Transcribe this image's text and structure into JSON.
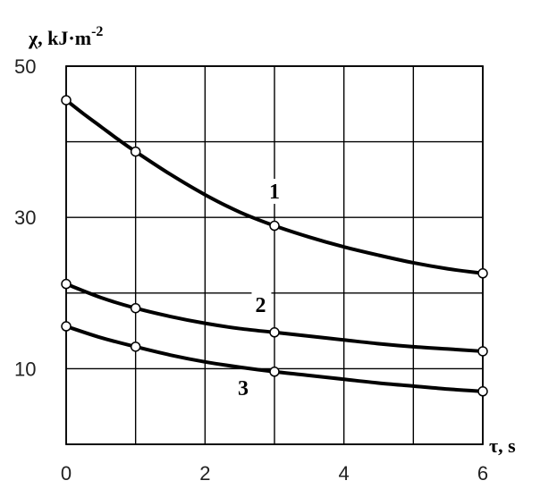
{
  "chart_data": {
    "type": "line",
    "title": "",
    "ylabel_main": "χ, kJ·m",
    "ylabel_exp": "-2",
    "xlabel": "τ, s",
    "xlim": [
      0,
      6
    ],
    "ylim": [
      0,
      50
    ],
    "x_ticks": [
      "0",
      "2",
      "4",
      "6"
    ],
    "y_ticks": [
      {
        "value": 10,
        "label": "10"
      },
      {
        "value": 30,
        "label": "30"
      },
      {
        "value": 50,
        "label": "50"
      }
    ],
    "grid": true,
    "grid_x_values": [
      0,
      1,
      2,
      3,
      4,
      5,
      6
    ],
    "grid_y_values": [
      0,
      10,
      20,
      30,
      40,
      50
    ],
    "series": [
      {
        "label": "1",
        "x": [
          0,
          1,
          3,
          6
        ],
        "y": [
          45.5,
          38.7,
          28.9,
          22.6
        ],
        "curve_x": [
          0,
          0.25,
          0.5,
          0.75,
          1,
          1.5,
          2,
          2.5,
          3,
          3.5,
          4,
          4.5,
          5,
          5.5,
          6
        ],
        "curve_y": [
          45.5,
          43.7,
          42.0,
          40.3,
          38.7,
          35.7,
          33.0,
          30.7,
          28.9,
          27.4,
          26.1,
          25.0,
          24.0,
          23.2,
          22.6
        ],
        "label_x": 3.0,
        "label_y": 32.5
      },
      {
        "label": "2",
        "x": [
          0,
          1,
          3,
          6
        ],
        "y": [
          21.2,
          18.0,
          14.8,
          12.3
        ],
        "curve_x": [
          0,
          0.5,
          1,
          1.5,
          2,
          2.5,
          3,
          3.5,
          4,
          4.5,
          5,
          5.5,
          6
        ],
        "curve_y": [
          21.2,
          19.4,
          18.0,
          16.9,
          16.0,
          15.3,
          14.8,
          14.3,
          13.8,
          13.3,
          12.9,
          12.6,
          12.3
        ],
        "label_x": 2.8,
        "label_y": 17.5
      },
      {
        "label": "3",
        "x": [
          0,
          1,
          3,
          6
        ],
        "y": [
          15.6,
          12.9,
          9.6,
          7.0
        ],
        "curve_x": [
          0,
          0.5,
          1,
          1.5,
          2,
          2.5,
          3,
          3.5,
          4,
          4.5,
          5,
          5.5,
          6
        ],
        "curve_y": [
          15.6,
          14.1,
          12.9,
          11.8,
          10.9,
          10.2,
          9.6,
          9.1,
          8.6,
          8.1,
          7.7,
          7.3,
          7.0
        ],
        "label_x": 2.55,
        "label_y": 6.5
      }
    ]
  }
}
